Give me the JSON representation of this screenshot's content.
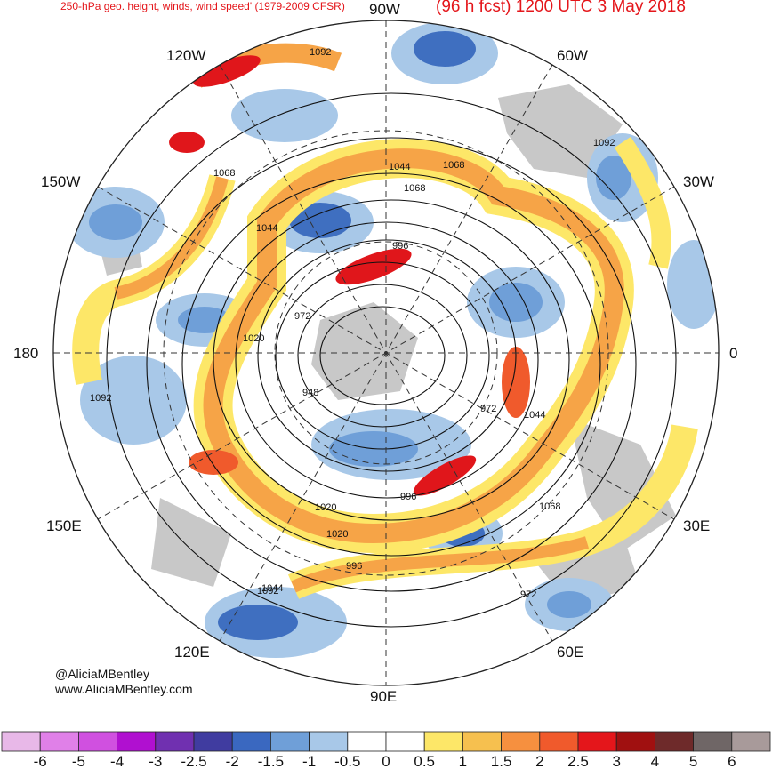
{
  "header": {
    "left_title": "250-hPa geo. height, winds, wind speed' (1979-2009 CFSR)",
    "right_title": "(96 h fcst) 1200 UTC 3 May 2018"
  },
  "credits": {
    "handle": "@AliciaMBentley",
    "website": "www.AliciaMBentley.com"
  },
  "map": {
    "projection": "north-polar-stereographic",
    "longitude_labels": [
      {
        "id": "90w",
        "text": "90W"
      },
      {
        "id": "60w",
        "text": "60W"
      },
      {
        "id": "30w",
        "text": "30W"
      },
      {
        "id": "0",
        "text": "0"
      },
      {
        "id": "30e",
        "text": "30E"
      },
      {
        "id": "60e",
        "text": "60E"
      },
      {
        "id": "90e",
        "text": "90E"
      },
      {
        "id": "120e",
        "text": "120E"
      },
      {
        "id": "150e",
        "text": "150E"
      },
      {
        "id": "180",
        "text": "180"
      },
      {
        "id": "150w",
        "text": "150W"
      },
      {
        "id": "120w",
        "text": "120W"
      }
    ],
    "contour_labels": [
      "1092",
      "1068",
      "1044",
      "1020",
      "996",
      "972",
      "948",
      "1044",
      "1068",
      "1092",
      "972",
      "996",
      "1020",
      "1044",
      "1068",
      "1092",
      "1020",
      "972",
      "996",
      "1092",
      "1068",
      "1044"
    ],
    "colors": {
      "land": "#c8c8c8",
      "neg_light": "#a8c8e8",
      "neg_mid": "#6f9fd8",
      "neg_dark": "#3f6fc0",
      "pos_light": "#fde768",
      "pos_mid": "#f6a447",
      "pos_high": "#f05a2c",
      "pos_max": "#e0161b"
    }
  },
  "colorbar": {
    "ticks": [
      "-6",
      "-5",
      "-4",
      "-3",
      "-2.5",
      "-2",
      "-1.5",
      "-1",
      "-0.5",
      "0",
      "0.5",
      "1",
      "1.5",
      "2",
      "2.5",
      "3",
      "4",
      "5",
      "6"
    ],
    "colors": [
      "#e8b8e8",
      "#e080e8",
      "#d050e0",
      "#b010d0",
      "#7030b0",
      "#403ca0",
      "#3a68c0",
      "#6f9fd8",
      "#a8c8e8",
      "#ffffff",
      "#ffffff",
      "#fde768",
      "#f6c04f",
      "#f6903f",
      "#f05a2c",
      "#e4161b",
      "#a01010",
      "#6e2a2a",
      "#6f6666",
      "#a89a9a"
    ]
  }
}
